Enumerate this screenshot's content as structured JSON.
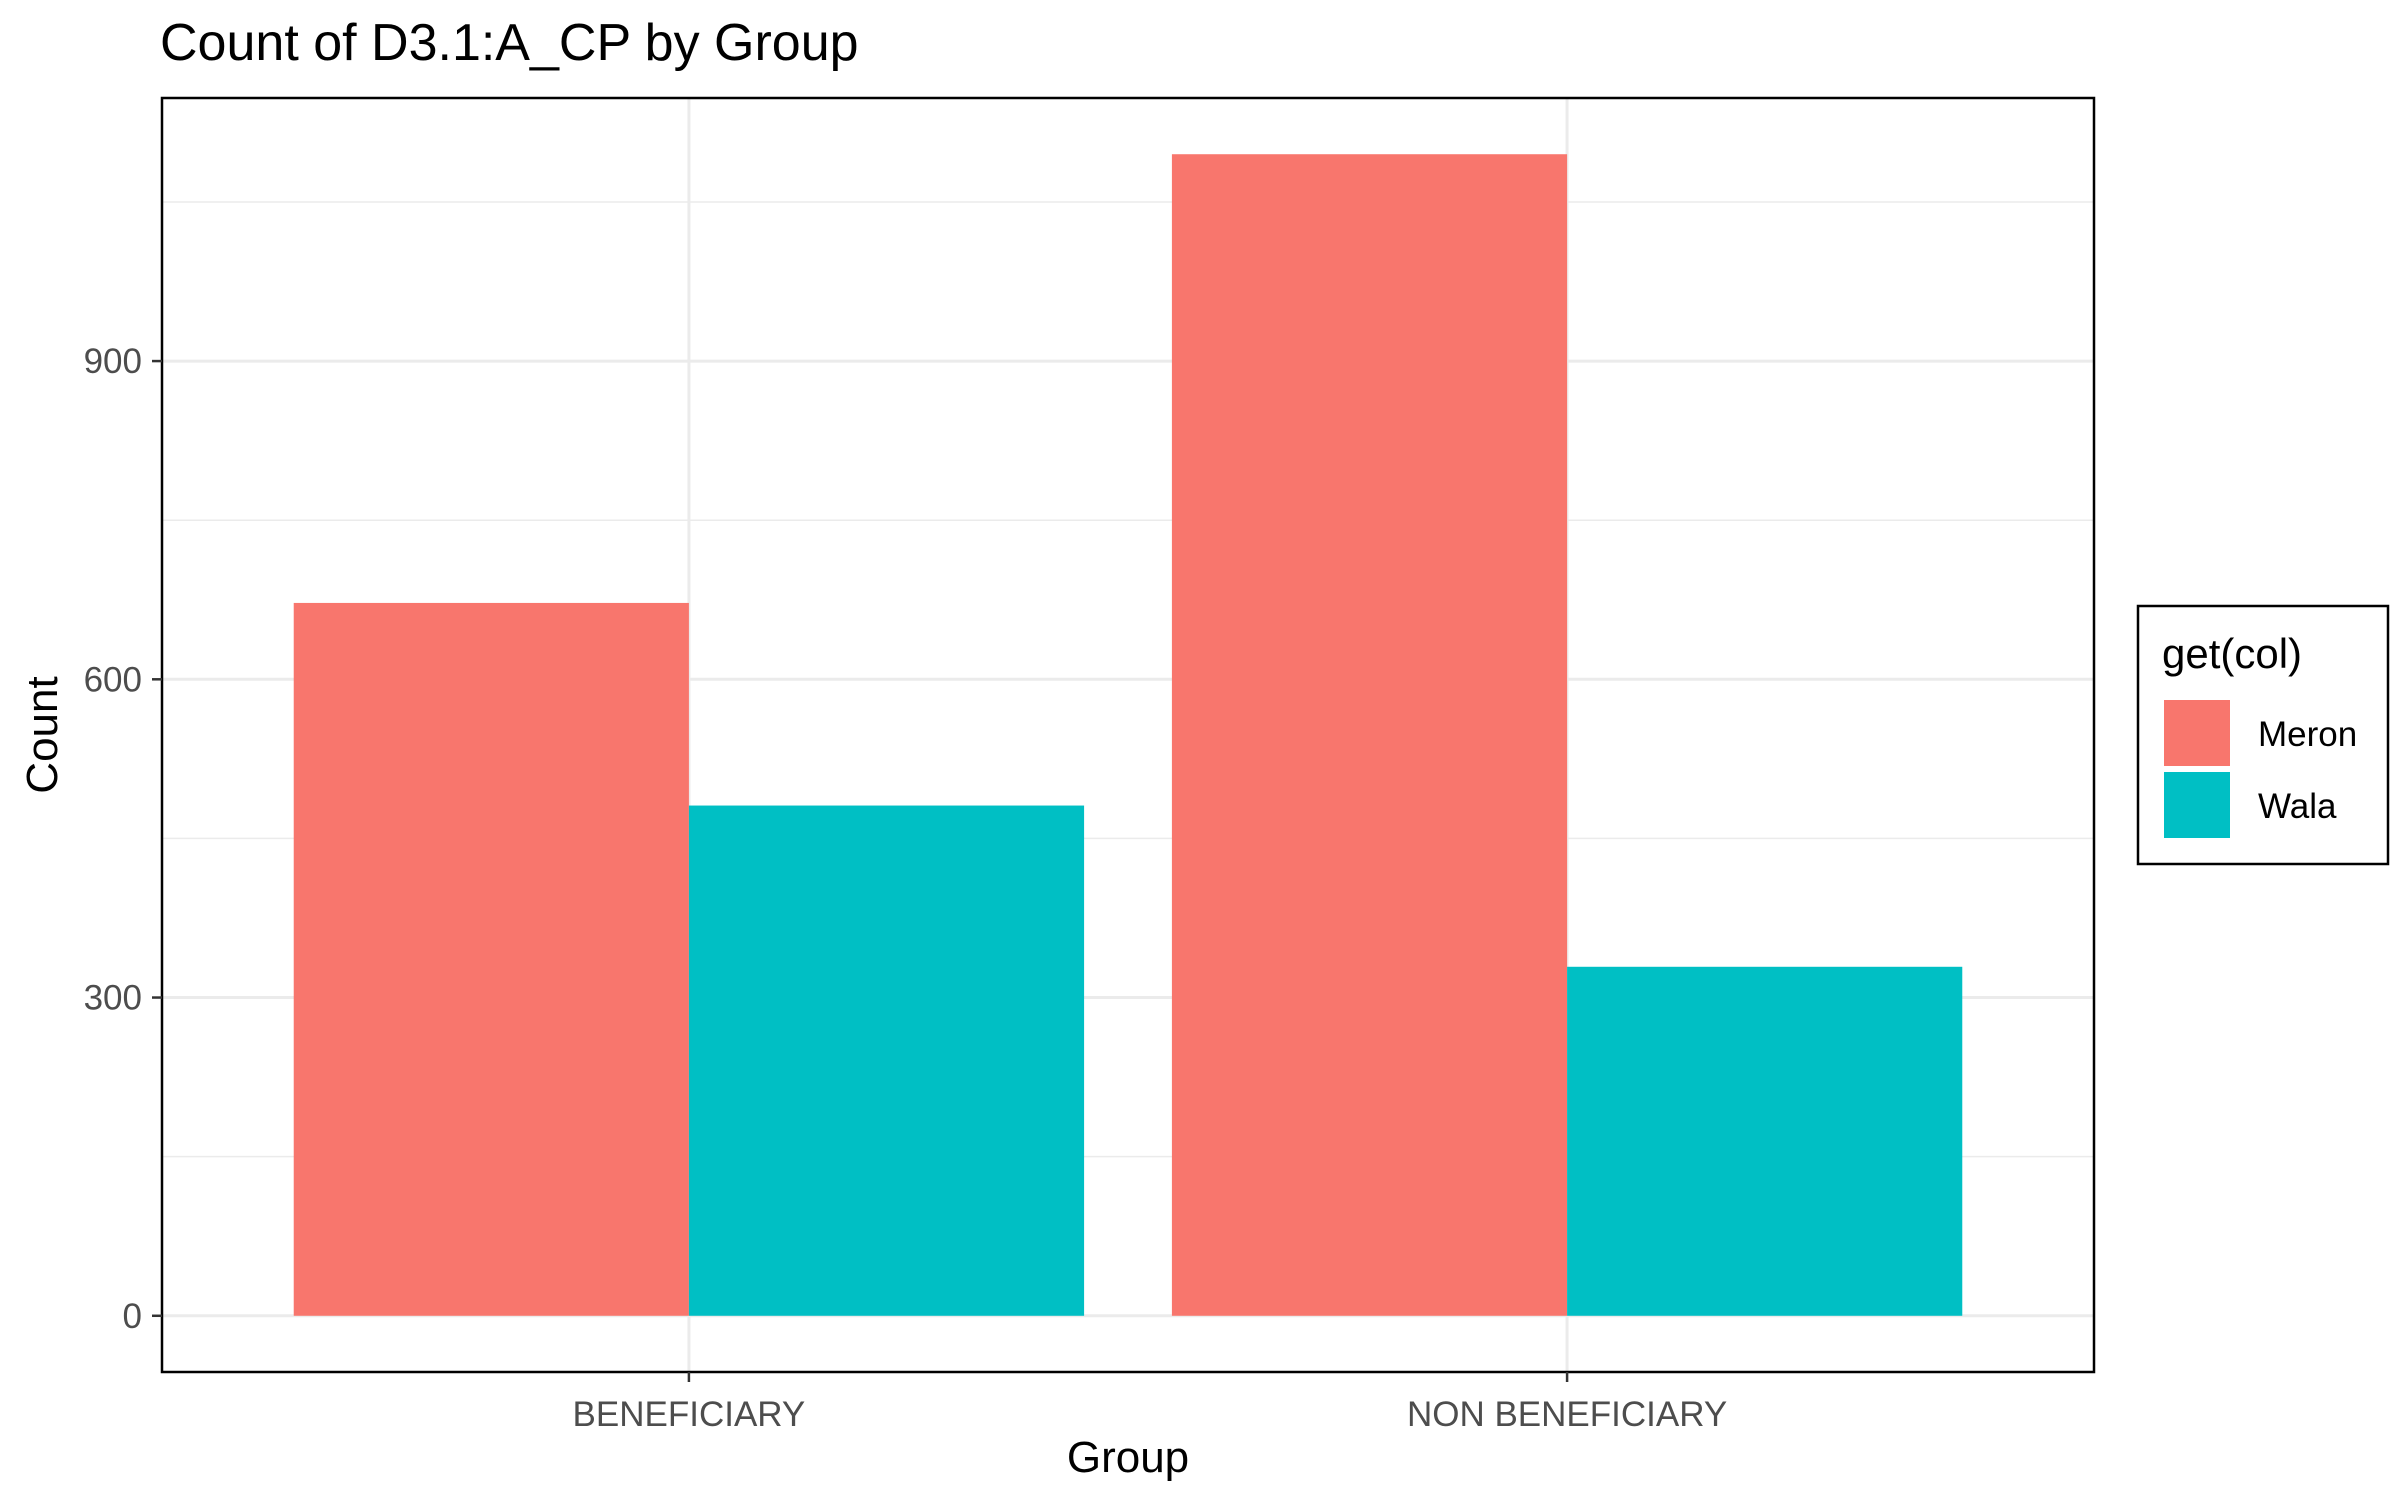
{
  "chart_data": {
    "type": "bar",
    "title": "Count of D3.1:A_CP by Group",
    "xlabel": "Group",
    "ylabel": "Count",
    "categories": [
      "BENEFICIARY",
      "NON BENEFICIARY"
    ],
    "series": [
      {
        "name": "Meron",
        "color": "#F8766D",
        "values": [
          672,
          1095
        ]
      },
      {
        "name": "Wala",
        "color": "#00BFC4",
        "values": [
          481,
          329
        ]
      }
    ],
    "ylim": [
      -53,
      1148
    ],
    "yticks": [
      0,
      300,
      600,
      900
    ],
    "ytick_labels": [
      "0",
      "300",
      "600",
      "900"
    ],
    "grid": true,
    "legend": {
      "title": "get(col)",
      "position": "right"
    }
  }
}
